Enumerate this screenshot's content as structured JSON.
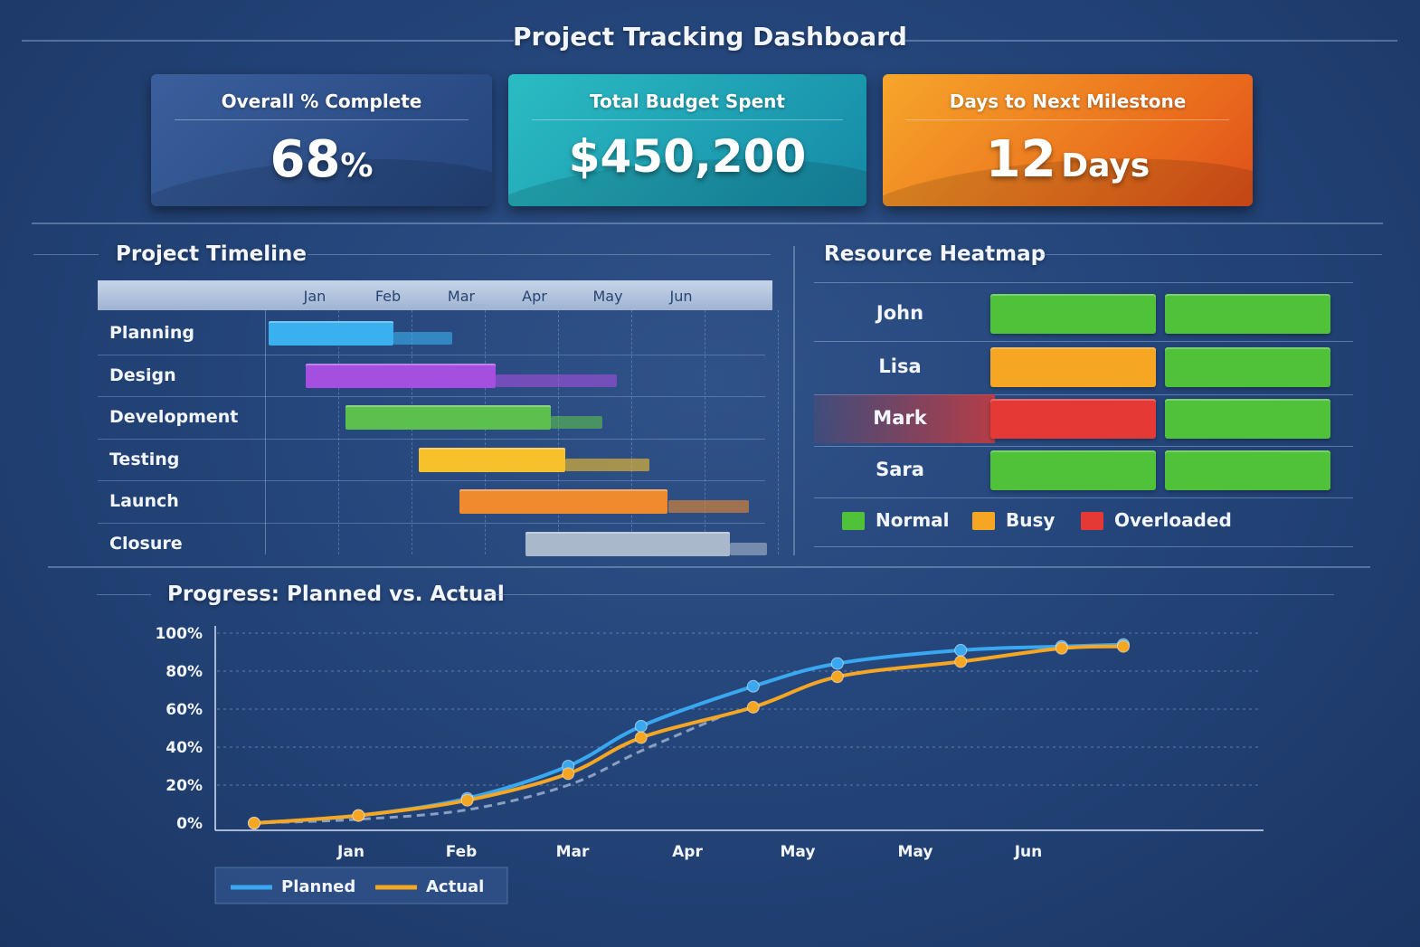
{
  "title": "Project Tracking Dashboard",
  "kpis": [
    {
      "label": "Overall % Complete",
      "value": "68",
      "unit": "%",
      "color": "#2c4f8a"
    },
    {
      "label": "Total Budget Spent",
      "value": "$450,200",
      "unit": "",
      "color": "#1ea7b4"
    },
    {
      "label": "Days to Next Milestone",
      "value": "12",
      "unit": "Days",
      "color": "#f08a1e"
    }
  ],
  "timeline": {
    "title": "Project Timeline",
    "months": [
      "Jan",
      "Feb",
      "Mar",
      "Apr",
      "May",
      "Jun"
    ],
    "tasks": [
      {
        "name": "Planning",
        "color": "#3bb0ee",
        "actual": [
          0.05,
          1.75
        ],
        "planned": [
          1.75,
          2.55
        ]
      },
      {
        "name": "Design",
        "color": "#a54fe0",
        "actual": [
          0.55,
          3.15
        ],
        "planned": [
          3.15,
          4.8
        ]
      },
      {
        "name": "Development",
        "color": "#5cc04f",
        "actual": [
          1.1,
          3.9
        ],
        "planned": [
          3.9,
          4.6
        ]
      },
      {
        "name": "Testing",
        "color": "#f6c12a",
        "actual": [
          2.1,
          4.1
        ],
        "planned": [
          4.1,
          5.25
        ]
      },
      {
        "name": "Launch",
        "color": "#ef8a2e",
        "actual": [
          2.65,
          5.5
        ],
        "planned": [
          5.5,
          6.6
        ]
      },
      {
        "name": "Closure",
        "color": "#aab8cc",
        "actual": [
          3.55,
          6.35
        ],
        "planned": [
          6.35,
          6.85
        ]
      }
    ]
  },
  "heatmap": {
    "title": "Resource Heatmap",
    "people": [
      {
        "name": "John",
        "cells": [
          "normal",
          "normal"
        ]
      },
      {
        "name": "Lisa",
        "cells": [
          "busy",
          "normal"
        ]
      },
      {
        "name": "Mark",
        "cells": [
          "overloaded",
          "normal"
        ]
      },
      {
        "name": "Sara",
        "cells": [
          "normal",
          "normal"
        ]
      }
    ],
    "legend": [
      {
        "key": "normal",
        "label": "Normal",
        "color": "#4fc23a"
      },
      {
        "key": "busy",
        "label": "Busy",
        "color": "#f5a623"
      },
      {
        "key": "overloaded",
        "label": "Overloaded",
        "color": "#e53935"
      }
    ]
  },
  "chart_data": {
    "type": "line",
    "title": "Progress: Planned vs. Actual",
    "x_tick_labels": [
      "Jan",
      "Feb",
      "Mar",
      "Apr",
      "May",
      "May",
      "Jun"
    ],
    "y_tick_labels": [
      "0%",
      "20%",
      "40%",
      "60%",
      "80%",
      "100%"
    ],
    "ylim": [
      0,
      100
    ],
    "grid": true,
    "legend_position": "bottom-left",
    "series": [
      {
        "name": "Planned",
        "color": "#3aa8f0",
        "points": [
          [
            0,
            0
          ],
          [
            0.93,
            4
          ],
          [
            1.9,
            13
          ],
          [
            2.8,
            30
          ],
          [
            3.45,
            51
          ],
          [
            4.45,
            72
          ],
          [
            5.2,
            84
          ],
          [
            6.3,
            91
          ],
          [
            7.2,
            93
          ],
          [
            7.75,
            94
          ]
        ]
      },
      {
        "name": "Actual",
        "color": "#f5a623",
        "points": [
          [
            0,
            0
          ],
          [
            0.93,
            4
          ],
          [
            1.9,
            12
          ],
          [
            2.8,
            26
          ],
          [
            3.45,
            45
          ],
          [
            4.45,
            61
          ],
          [
            5.2,
            77
          ],
          [
            6.3,
            85
          ],
          [
            7.2,
            92
          ],
          [
            7.75,
            93
          ]
        ]
      }
    ],
    "baseline": {
      "color": "#8aa0c2",
      "points": [
        [
          0,
          0
        ],
        [
          0.93,
          2
        ],
        [
          1.9,
          7
        ],
        [
          2.8,
          20
        ],
        [
          3.45,
          38
        ],
        [
          4.2,
          57
        ]
      ]
    }
  }
}
